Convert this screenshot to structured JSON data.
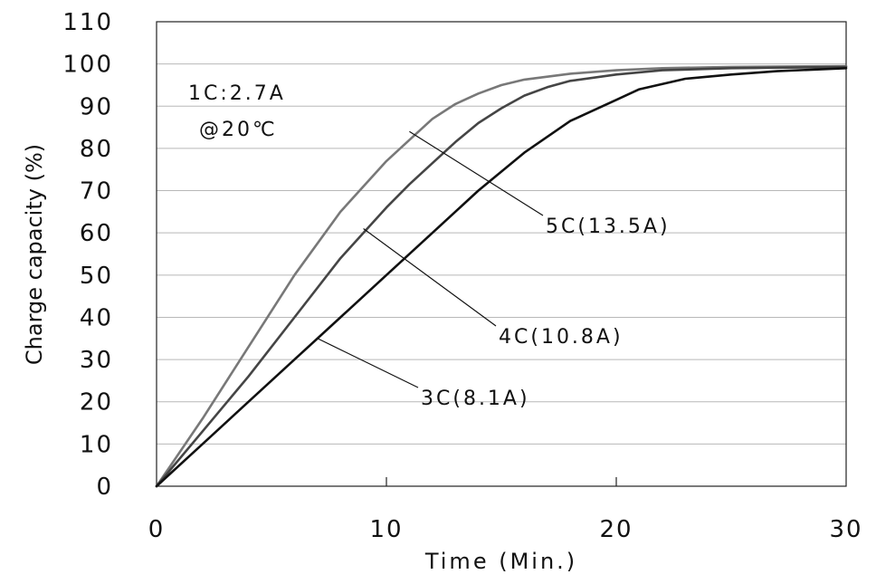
{
  "chart_data": {
    "type": "line",
    "xlabel": "Time (Min.)",
    "ylabel": "Charge capacity (%)",
    "xlim": [
      0,
      30
    ],
    "ylim": [
      0,
      110
    ],
    "xticks": [
      0,
      10,
      20,
      30
    ],
    "yticks": [
      0,
      10,
      20,
      30,
      40,
      50,
      60,
      70,
      80,
      90,
      100,
      110
    ],
    "grid": "horizontal",
    "annotation": [
      "1C:2.7A",
      "@20℃"
    ],
    "series": [
      {
        "name": "5C(13.5A)",
        "color": "#787878",
        "label_anchor": [
          11,
          84
        ],
        "points": [
          [
            0,
            0
          ],
          [
            2,
            16
          ],
          [
            4,
            33
          ],
          [
            6,
            50
          ],
          [
            8,
            65
          ],
          [
            10,
            77
          ],
          [
            11,
            82
          ],
          [
            12,
            87
          ],
          [
            13,
            90.5
          ],
          [
            14,
            93
          ],
          [
            15,
            95
          ],
          [
            16,
            96.3
          ],
          [
            18,
            97.7
          ],
          [
            20,
            98.5
          ],
          [
            22,
            99
          ],
          [
            25,
            99.3
          ],
          [
            30,
            99.5
          ]
        ]
      },
      {
        "name": "4C(10.8A)",
        "color": "#454545",
        "label_anchor": [
          9,
          61
        ],
        "points": [
          [
            0,
            0
          ],
          [
            2,
            13
          ],
          [
            4,
            26
          ],
          [
            6,
            40
          ],
          [
            8,
            54
          ],
          [
            10,
            66
          ],
          [
            11,
            71.5
          ],
          [
            12,
            76.5
          ],
          [
            13,
            81.5
          ],
          [
            14,
            86
          ],
          [
            15,
            89.5
          ],
          [
            16,
            92.5
          ],
          [
            17,
            94.5
          ],
          [
            18,
            96
          ],
          [
            20,
            97.5
          ],
          [
            22,
            98.5
          ],
          [
            25,
            99
          ],
          [
            30,
            99.3
          ]
        ]
      },
      {
        "name": "3C(8.1A)",
        "color": "#111111",
        "label_anchor": [
          7,
          35
        ],
        "points": [
          [
            0,
            0
          ],
          [
            2,
            10
          ],
          [
            4,
            20
          ],
          [
            6,
            30
          ],
          [
            8,
            40
          ],
          [
            10,
            50
          ],
          [
            12,
            60
          ],
          [
            14,
            70
          ],
          [
            16,
            79
          ],
          [
            18,
            86.5
          ],
          [
            20,
            91.5
          ],
          [
            21,
            94
          ],
          [
            23,
            96.5
          ],
          [
            25,
            97.5
          ],
          [
            27,
            98.3
          ],
          [
            30,
            99
          ]
        ]
      }
    ]
  }
}
